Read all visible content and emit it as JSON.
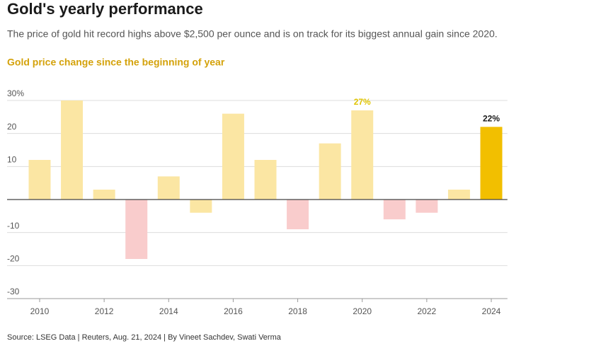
{
  "chart_data": {
    "type": "bar",
    "title": "Gold's yearly performance",
    "subtitle": "The price of gold hit record highs above $2,500 per ounce and is on track for its biggest annual gain since 2020.",
    "chart_title": "Gold price change since the beginning of year",
    "source": "Source: LSEG Data | Reuters, Aug. 21, 2024 | By Vineet Sachdev, Swati Verma",
    "categories": [
      "2010",
      null,
      "2012",
      null,
      "2014",
      null,
      "2016",
      null,
      "2018",
      null,
      "2020",
      null,
      "2022",
      null,
      "2024"
    ],
    "values": [
      12,
      30,
      3,
      -18,
      7,
      -4,
      26,
      12,
      -9,
      17,
      27,
      -6,
      -4,
      3,
      22
    ],
    "value_labels": [
      null,
      null,
      null,
      null,
      null,
      null,
      null,
      null,
      null,
      null,
      "27%",
      null,
      null,
      null,
      "22%"
    ],
    "colors": [
      "#fbe6a3",
      "#fbe6a3",
      "#fbe6a3",
      "#f9cccc",
      "#fbe6a3",
      "#fbe6a3",
      "#fbe6a3",
      "#fbe6a3",
      "#f9cccc",
      "#fbe6a3",
      "#fbe6a3",
      "#f9cccc",
      "#f9cccc",
      "#fbe6a3",
      "#f2bf00"
    ],
    "ylim": [
      -30,
      30
    ],
    "yticks": [
      {
        "value": 30,
        "label": "30%"
      },
      20,
      10,
      -10,
      -20,
      -30
    ],
    "grid": true
  }
}
